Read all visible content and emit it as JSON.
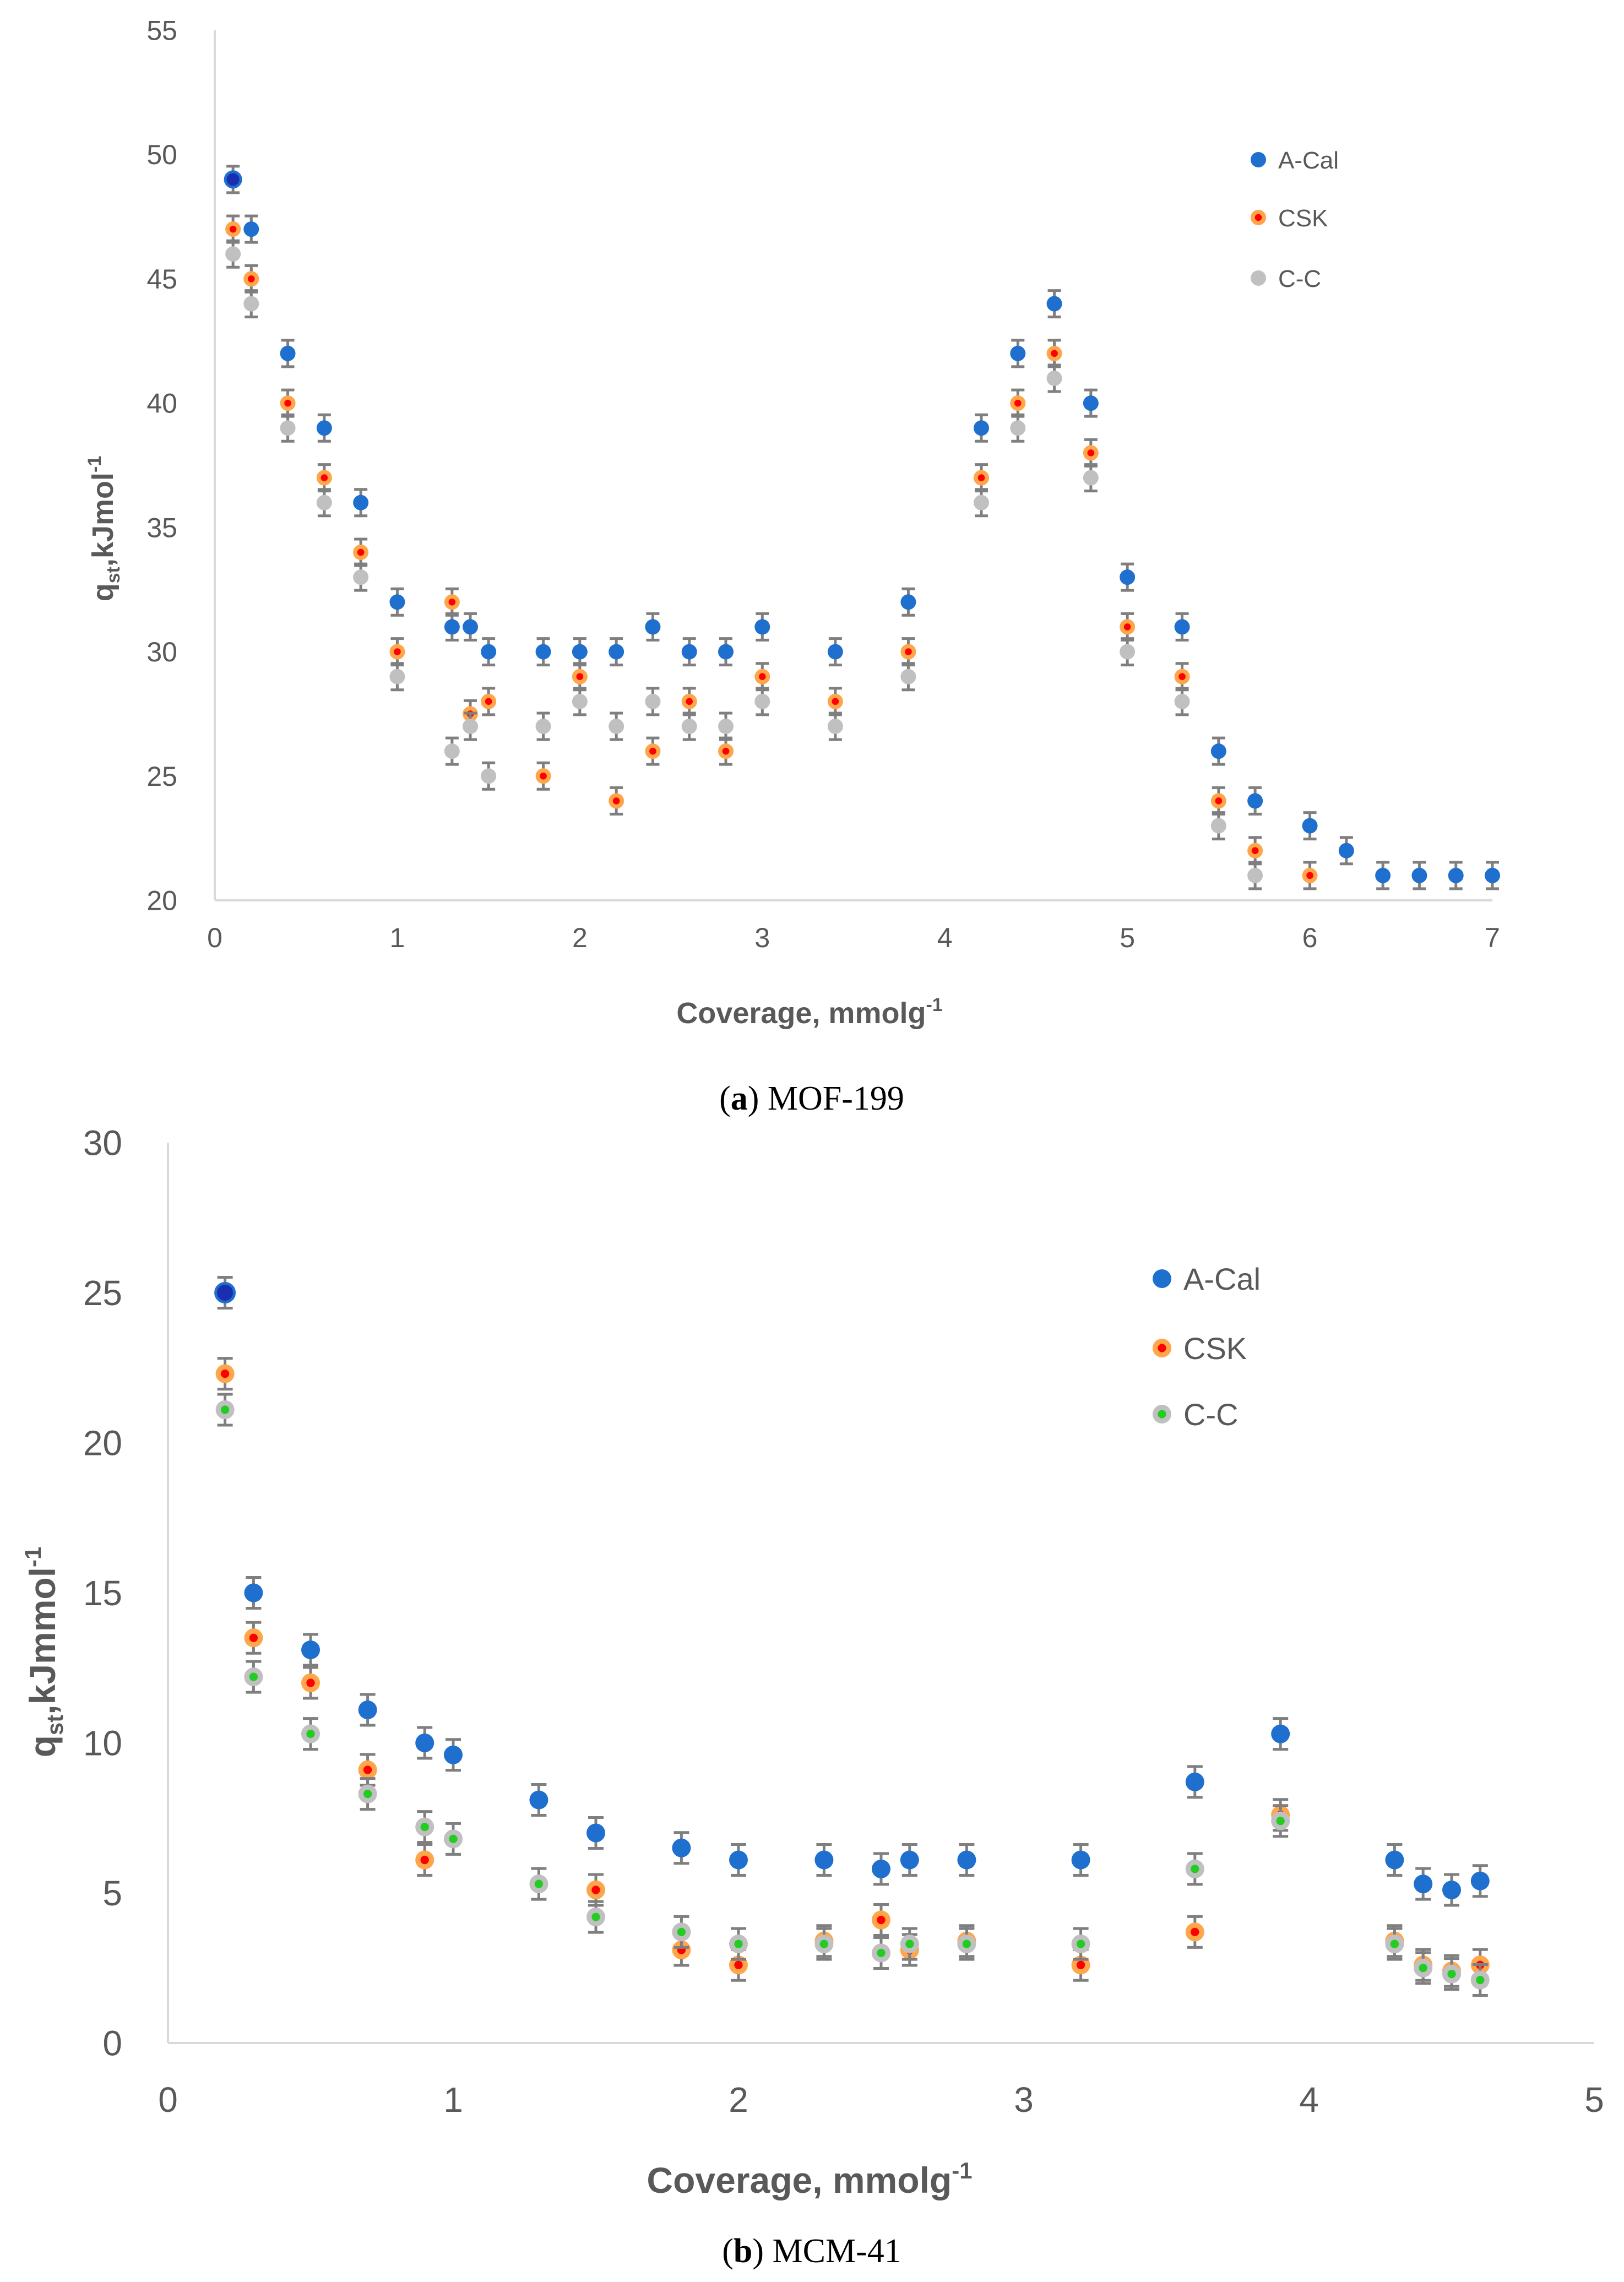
{
  "colors": {
    "axis": "#d9d9d9",
    "text": "#595959",
    "errorbar": "#7f7f7f",
    "a_cal": "#1f6fce",
    "a_cal_first": "#1a2fb0",
    "csk_fill": "#ff0000",
    "csk_ring": "#ffa54a",
    "cc_a": "#c0c0c0",
    "cc_b_fill": "#22cc22",
    "cc_b_ring": "#c0c0c0"
  },
  "chart_data": [
    {
      "type": "scatter",
      "caption_label": "a",
      "caption_text": "MOF-199",
      "xlabel_main": "Coverage, mmolg",
      "xlabel_sup": "-1",
      "ylabel_q": "q",
      "ylabel_sub": "st",
      "ylabel_unit": ",kJmol",
      "ylabel_sup": "-1",
      "xlim": [
        0,
        7
      ],
      "ylim": [
        20,
        55
      ],
      "xticks": [
        "0",
        "1",
        "2",
        "3",
        "4",
        "5",
        "6",
        "7"
      ],
      "yticks": [
        "20",
        "25",
        "30",
        "35",
        "40",
        "45",
        "50",
        "55"
      ],
      "legend_position": "top-right",
      "series": [
        {
          "name": "A-Cal",
          "x": [
            0.1,
            0.2,
            0.4,
            0.6,
            0.8,
            1.0,
            1.3,
            1.4,
            1.5,
            1.8,
            2.0,
            2.2,
            2.4,
            2.6,
            2.8,
            3.0,
            3.4,
            3.8,
            4.2,
            4.4,
            4.6,
            4.8,
            5.0,
            5.3,
            5.5,
            5.7,
            6.0,
            6.2,
            6.4,
            6.6,
            6.8,
            7.0
          ],
          "y": [
            49,
            47,
            42,
            39,
            36,
            32,
            31,
            31,
            30,
            30,
            30,
            30,
            31,
            30,
            30,
            31,
            30,
            32,
            39,
            42,
            44,
            40,
            33,
            31,
            26,
            24,
            23,
            22,
            21,
            21,
            21,
            21
          ]
        },
        {
          "name": "CSK",
          "x": [
            0.1,
            0.2,
            0.4,
            0.6,
            0.8,
            1.0,
            1.3,
            1.4,
            1.5,
            1.8,
            2.0,
            2.2,
            2.4,
            2.6,
            2.8,
            3.0,
            3.4,
            3.8,
            4.2,
            4.4,
            4.6,
            4.8,
            5.0,
            5.3,
            5.5,
            5.7,
            6.0
          ],
          "y": [
            47,
            45,
            40,
            37,
            34,
            30,
            32,
            27.5,
            28,
            25,
            29,
            24,
            26,
            28,
            26,
            29,
            28,
            30,
            37,
            40,
            42,
            38,
            31,
            29,
            24,
            22,
            21
          ]
        },
        {
          "name": "C-C",
          "x": [
            0.1,
            0.2,
            0.4,
            0.6,
            0.8,
            1.0,
            1.3,
            1.4,
            1.5,
            1.8,
            2.0,
            2.2,
            2.4,
            2.6,
            2.8,
            3.0,
            3.4,
            3.8,
            4.2,
            4.4,
            4.6,
            4.8,
            5.0,
            5.3,
            5.5,
            5.7
          ],
          "y": [
            46,
            44,
            39,
            36,
            33,
            29,
            26,
            27,
            25,
            27,
            28,
            27,
            28,
            27,
            27,
            28,
            27,
            29,
            36,
            39,
            41,
            37,
            30,
            28,
            23,
            21
          ]
        }
      ]
    },
    {
      "type": "scatter",
      "caption_label": "b",
      "caption_text": "MCM-41",
      "xlabel_main": "Coverage, mmolg",
      "xlabel_sup": "-1",
      "ylabel_q": "q",
      "ylabel_sub": "st",
      "ylabel_unit": ",kJmmol",
      "ylabel_sup": "-1",
      "xlim": [
        0,
        5
      ],
      "ylim": [
        0,
        30
      ],
      "xticks": [
        "0",
        "1",
        "2",
        "3",
        "4",
        "5"
      ],
      "yticks": [
        "0",
        "5",
        "10",
        "15",
        "20",
        "25",
        "30"
      ],
      "legend_position": "top-right",
      "series": [
        {
          "name": "A-Cal",
          "x": [
            0.2,
            0.3,
            0.5,
            0.7,
            0.9,
            1.0,
            1.3,
            1.5,
            1.8,
            2.0,
            2.3,
            2.5,
            2.6,
            2.8,
            3.2,
            3.6,
            3.9,
            4.3,
            4.4,
            4.5,
            4.6
          ],
          "y": [
            25,
            15,
            13.1,
            11.1,
            10,
            9.6,
            8.1,
            7,
            6.5,
            6.1,
            6.1,
            5.8,
            6.1,
            6.1,
            6.1,
            8.7,
            10.3,
            6.1,
            5.3,
            5.1,
            5.4
          ]
        },
        {
          "name": "CSK",
          "x": [
            0.2,
            0.3,
            0.5,
            0.7,
            0.9,
            1.5,
            1.8,
            2.0,
            2.3,
            2.5,
            2.6,
            2.8,
            3.2,
            3.6,
            3.9,
            4.3,
            4.4,
            4.5,
            4.6
          ],
          "y": [
            22.3,
            13.5,
            12,
            9.1,
            6.1,
            5.1,
            3.1,
            2.6,
            3.4,
            4.1,
            3.1,
            3.4,
            2.6,
            3.7,
            7.6,
            3.4,
            2.6,
            2.4,
            2.6
          ]
        },
        {
          "name": "C-C",
          "x": [
            0.2,
            0.3,
            0.5,
            0.7,
            0.9,
            1.0,
            1.3,
            1.5,
            1.8,
            2.0,
            2.3,
            2.5,
            2.6,
            2.8,
            3.2,
            3.6,
            3.9,
            4.3,
            4.4,
            4.5,
            4.6
          ],
          "y": [
            21.1,
            12.2,
            10.3,
            8.3,
            7.2,
            6.8,
            5.3,
            4.2,
            3.7,
            3.3,
            3.3,
            3.0,
            3.3,
            3.3,
            3.3,
            5.8,
            7.4,
            3.3,
            2.5,
            2.3,
            2.1
          ]
        }
      ]
    }
  ]
}
